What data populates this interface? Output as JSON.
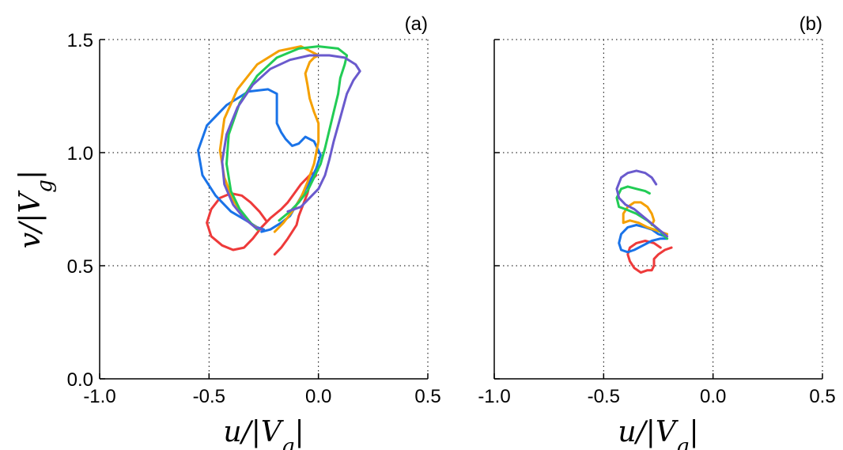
{
  "chart_data": [
    {
      "type": "line",
      "panel_label": "(a)",
      "xlabel": "u/|V_g|",
      "ylabel": "v/|V_g|",
      "xlim": [
        -1.0,
        0.5
      ],
      "ylim": [
        0.0,
        1.5
      ],
      "xticks": [
        "-1.0",
        "-0.5",
        "0.0",
        "0.5"
      ],
      "yticks": [
        "0.0",
        "0.5",
        "1.0",
        "1.5"
      ],
      "grid": true,
      "series": [
        {
          "color": "#ee3a3a",
          "x": [
            -0.2,
            -0.17,
            -0.14,
            -0.12,
            -0.1,
            -0.09,
            -0.07,
            -0.05,
            -0.04,
            -0.02,
            -0.01,
            -0.03,
            -0.05,
            -0.08,
            -0.11,
            -0.14,
            -0.17,
            -0.22,
            -0.26,
            -0.3,
            -0.34,
            -0.39,
            -0.44,
            -0.49,
            -0.51,
            -0.49,
            -0.45,
            -0.4,
            -0.35,
            -0.31,
            -0.27,
            -0.24
          ],
          "y": [
            0.55,
            0.58,
            0.62,
            0.65,
            0.68,
            0.72,
            0.77,
            0.82,
            0.86,
            0.89,
            0.9,
            0.91,
            0.89,
            0.86,
            0.82,
            0.78,
            0.75,
            0.71,
            0.67,
            0.62,
            0.58,
            0.57,
            0.59,
            0.63,
            0.69,
            0.75,
            0.8,
            0.82,
            0.81,
            0.78,
            0.74,
            0.7
          ]
        },
        {
          "color": "#1a73e8",
          "x": [
            -0.26,
            -0.22,
            -0.17,
            -0.13,
            -0.1,
            -0.07,
            -0.04,
            -0.01,
            0.01,
            -0.02,
            -0.06,
            -0.09,
            -0.12,
            -0.15,
            -0.17,
            -0.19,
            -0.19,
            -0.19,
            -0.23,
            -0.32,
            -0.42,
            -0.51,
            -0.55,
            -0.53,
            -0.47,
            -0.4,
            -0.33,
            -0.28,
            -0.25
          ],
          "y": [
            0.65,
            0.66,
            0.69,
            0.72,
            0.77,
            0.82,
            0.87,
            0.93,
            0.99,
            1.05,
            1.07,
            1.04,
            1.03,
            1.06,
            1.09,
            1.13,
            1.2,
            1.26,
            1.28,
            1.27,
            1.21,
            1.12,
            1.01,
            0.9,
            0.81,
            0.74,
            0.7,
            0.67,
            0.66
          ]
        },
        {
          "color": "#f5a000",
          "x": [
            -0.2,
            -0.16,
            -0.12,
            -0.08,
            -0.05,
            -0.02,
            0.0,
            0.0,
            -0.02,
            -0.04,
            -0.05,
            -0.06,
            -0.04,
            -0.02,
            0.0,
            -0.08,
            -0.18,
            -0.28,
            -0.37,
            -0.43,
            -0.45,
            -0.43,
            -0.39,
            -0.34,
            -0.3,
            -0.27
          ],
          "y": [
            0.65,
            0.69,
            0.74,
            0.8,
            0.87,
            0.95,
            1.05,
            1.13,
            1.18,
            1.24,
            1.3,
            1.35,
            1.4,
            1.42,
            1.43,
            1.47,
            1.45,
            1.39,
            1.28,
            1.15,
            1.01,
            0.89,
            0.79,
            0.72,
            0.68,
            0.66
          ]
        },
        {
          "color": "#22cc55",
          "x": [
            -0.18,
            -0.13,
            -0.09,
            -0.05,
            -0.02,
            0.01,
            0.03,
            0.05,
            0.07,
            0.09,
            0.1,
            0.12,
            0.13,
            0.09,
            0.0,
            -0.09,
            -0.19,
            -0.28,
            -0.36,
            -0.41,
            -0.42,
            -0.4,
            -0.36,
            -0.31,
            -0.28
          ],
          "y": [
            0.7,
            0.74,
            0.78,
            0.83,
            0.89,
            0.95,
            1.02,
            1.1,
            1.18,
            1.26,
            1.33,
            1.39,
            1.43,
            1.46,
            1.47,
            1.46,
            1.42,
            1.34,
            1.22,
            1.08,
            0.95,
            0.83,
            0.75,
            0.69,
            0.66
          ]
        },
        {
          "color": "#6a5acd",
          "x": [
            -0.14,
            -0.08,
            -0.04,
            0.0,
            0.03,
            0.05,
            0.07,
            0.09,
            0.11,
            0.13,
            0.16,
            0.19,
            0.17,
            0.12,
            0.05,
            -0.04,
            -0.13,
            -0.22,
            -0.3,
            -0.37,
            -0.42,
            -0.44,
            -0.43,
            -0.39,
            -0.34,
            -0.29,
            -0.26
          ],
          "y": [
            0.74,
            0.76,
            0.8,
            0.84,
            0.9,
            0.97,
            1.05,
            1.12,
            1.19,
            1.26,
            1.32,
            1.36,
            1.39,
            1.42,
            1.43,
            1.43,
            1.41,
            1.37,
            1.3,
            1.2,
            1.08,
            0.96,
            0.86,
            0.77,
            0.71,
            0.67,
            0.66
          ]
        }
      ]
    },
    {
      "type": "line",
      "panel_label": "(b)",
      "xlabel": "u/|V_g|",
      "ylabel": "",
      "xlim": [
        -1.0,
        0.5
      ],
      "ylim": [
        0.0,
        1.5
      ],
      "xticks": [
        "-1.0",
        "-0.5",
        "0.0",
        "0.5"
      ],
      "yticks": [
        "",
        "",
        "",
        ""
      ],
      "grid": true,
      "series": [
        {
          "color": "#ee3a3a",
          "x": [
            -0.19,
            -0.22,
            -0.25,
            -0.27,
            -0.27,
            -0.28,
            -0.3,
            -0.33,
            -0.36,
            -0.38,
            -0.39,
            -0.38,
            -0.35,
            -0.31,
            -0.27,
            -0.24
          ],
          "y": [
            0.58,
            0.57,
            0.55,
            0.53,
            0.5,
            0.48,
            0.48,
            0.47,
            0.49,
            0.52,
            0.55,
            0.58,
            0.6,
            0.61,
            0.6,
            0.58
          ]
        },
        {
          "color": "#1a73e8",
          "x": [
            -0.22,
            -0.25,
            -0.28,
            -0.31,
            -0.35,
            -0.39,
            -0.42,
            -0.43,
            -0.42,
            -0.39,
            -0.36,
            -0.32,
            -0.28,
            -0.24,
            -0.21
          ],
          "y": [
            0.63,
            0.64,
            0.66,
            0.67,
            0.68,
            0.67,
            0.64,
            0.6,
            0.57,
            0.56,
            0.57,
            0.59,
            0.61,
            0.62,
            0.62
          ]
        },
        {
          "color": "#f5a000",
          "x": [
            -0.21,
            -0.24,
            -0.27,
            -0.3,
            -0.34,
            -0.38,
            -0.41,
            -0.41,
            -0.39,
            -0.36,
            -0.33,
            -0.3,
            -0.28,
            -0.27,
            -0.28
          ],
          "y": [
            0.64,
            0.65,
            0.66,
            0.67,
            0.69,
            0.7,
            0.69,
            0.73,
            0.76,
            0.78,
            0.78,
            0.76,
            0.73,
            0.7,
            0.68
          ]
        },
        {
          "color": "#22cc55",
          "x": [
            -0.21,
            -0.25,
            -0.3,
            -0.35,
            -0.4,
            -0.43,
            -0.44,
            -0.42,
            -0.39,
            -0.35,
            -0.31,
            -0.29
          ],
          "y": [
            0.62,
            0.66,
            0.7,
            0.73,
            0.75,
            0.76,
            0.8,
            0.84,
            0.85,
            0.84,
            0.83,
            0.82
          ]
        },
        {
          "color": "#6a5acd",
          "x": [
            -0.21,
            -0.26,
            -0.31,
            -0.36,
            -0.4,
            -0.43,
            -0.44,
            -0.42,
            -0.39,
            -0.35,
            -0.31,
            -0.28,
            -0.26
          ],
          "y": [
            0.63,
            0.67,
            0.71,
            0.75,
            0.77,
            0.8,
            0.84,
            0.89,
            0.91,
            0.92,
            0.91,
            0.89,
            0.86
          ]
        }
      ]
    }
  ]
}
